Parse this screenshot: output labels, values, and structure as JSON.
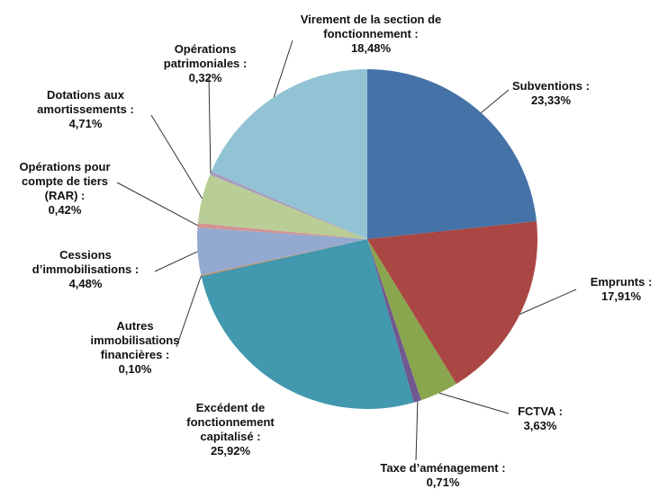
{
  "chart_data": {
    "type": "pie",
    "categories": [
      "Subventions :",
      "Emprunts :",
      "FCTVA :",
      "Taxe d’aménagement :",
      "Excédent de fonctionnement capitalisé :",
      "Autres immobilisations financières :",
      "Cessions d’immobilisations :",
      "Opérations pour compte de tiers (RAR) :",
      "Dotations aux amortissements :",
      "Opérations patrimoniales :",
      "Virement de la section de fonctionnement :"
    ],
    "values": [
      23.33,
      17.91,
      3.63,
      0.71,
      25.92,
      0.1,
      4.48,
      0.42,
      4.71,
      0.32,
      18.48
    ],
    "value_labels": [
      "23,33%",
      "17,91%",
      "3,63%",
      "0,71%",
      "25,92%",
      "0,10%",
      "4,48%",
      "0,42%",
      "4,71%",
      "0,32%",
      "18,48%"
    ],
    "colors": [
      "#4572A7",
      "#AA4643",
      "#89A54E",
      "#71588F",
      "#4198AF",
      "#DB843D",
      "#93A9CF",
      "#D19392",
      "#B9CD96",
      "#A99BBD",
      "#92C3D5"
    ]
  }
}
